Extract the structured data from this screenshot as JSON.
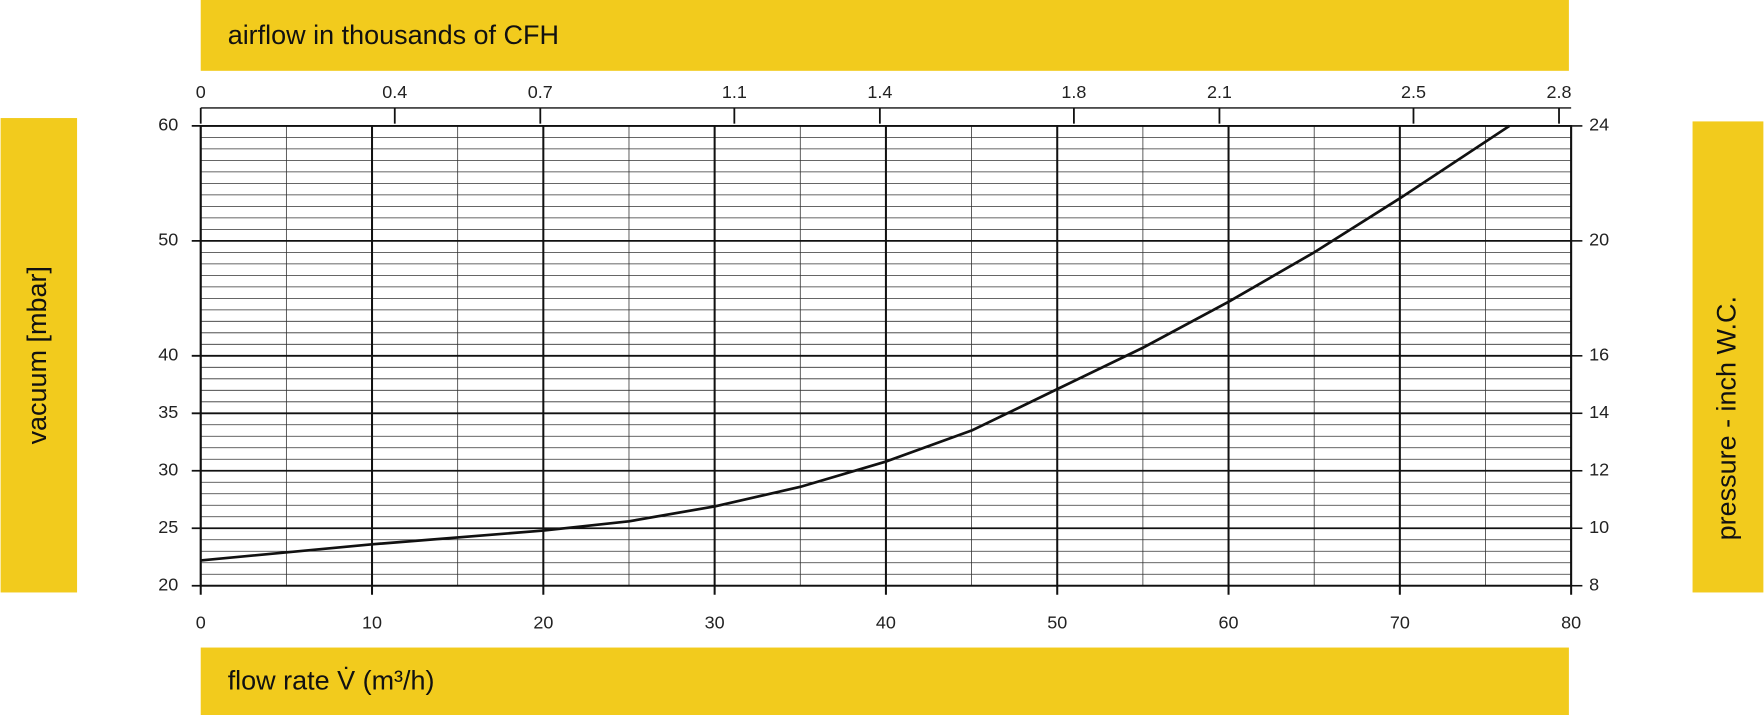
{
  "chart_data": {
    "type": "line",
    "x_label": "flow rate V̇ (m³/h)",
    "x2_label": "airflow in thousands of CFH",
    "y_label": "vacuum [mbar]",
    "y2_label": "pressure  - inch W.C.",
    "x": [
      0,
      10,
      20,
      25,
      30,
      35,
      40,
      45,
      50,
      55,
      60,
      65,
      70,
      76.4
    ],
    "values": [
      22.2,
      23.6,
      24.8,
      25.6,
      26.9,
      28.6,
      30.8,
      33.5,
      37.1,
      40.7,
      44.7,
      49.0,
      53.7,
      60
    ],
    "color": "#111111",
    "xlim": [
      0,
      80
    ],
    "xticks": [
      0,
      10,
      20,
      30,
      40,
      50,
      60,
      70,
      80
    ],
    "x2lim": [
      0,
      2.825
    ],
    "x2ticks": [
      0,
      0.4,
      0.7,
      1.1,
      1.4,
      1.8,
      2.1,
      2.5,
      2.8
    ],
    "ylim": [
      20,
      60
    ],
    "yticks": [
      20,
      25,
      30,
      35,
      40,
      50,
      60
    ],
    "y2lim": [
      8,
      24
    ],
    "y2ticks": [
      8,
      10,
      12,
      14,
      16,
      20,
      24
    ],
    "grid": true,
    "minor_grid": {
      "x": 5,
      "y": 1
    },
    "band_color": "#f2cb1d"
  }
}
